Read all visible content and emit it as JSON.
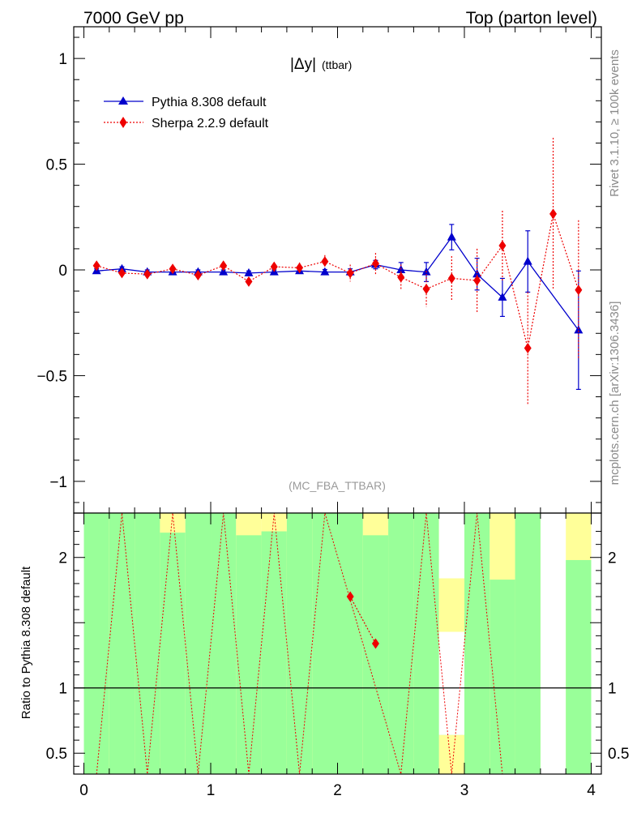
{
  "header": {
    "left": "7000 GeV pp",
    "right": "Top (parton level)"
  },
  "side_labels": {
    "rivet": "Rivet 3.1.10, ≥ 100k events",
    "mcplots": "mcplots.cern.ch [arXiv:1306.3436]"
  },
  "chart_data": [
    {
      "type": "line",
      "panel": "main",
      "title_main": "|Δy|",
      "title_sub": "(ttbar)",
      "watermark": "(MC_FBA_TTBAR)",
      "ylim": [
        -1.15,
        1.15
      ],
      "xlim": [
        -0.08,
        4.08
      ],
      "yticks": [
        -1,
        -0.5,
        0,
        0.5,
        1
      ],
      "ytick_labels": [
        "−1",
        "−0.5",
        "0",
        "0.5",
        "1"
      ],
      "legend_position": "top-left",
      "series": [
        {
          "name": "Pythia 8.308 default",
          "color": "#0000cc",
          "marker": "triangle",
          "line": "solid",
          "x": [
            0.1,
            0.3,
            0.5,
            0.7,
            0.9,
            1.1,
            1.3,
            1.5,
            1.7,
            1.9,
            2.1,
            2.3,
            2.5,
            2.7,
            2.9,
            3.1,
            3.3,
            3.5,
            3.7,
            3.9
          ],
          "y": [
            -0.005,
            0.005,
            -0.01,
            -0.01,
            -0.01,
            -0.01,
            -0.015,
            -0.01,
            -0.005,
            -0.01,
            -0.01,
            0.025,
            0.0,
            -0.01,
            0.155,
            -0.02,
            -0.13,
            0.04,
            null,
            -0.285
          ],
          "err": [
            0.01,
            0.01,
            0.01,
            0.01,
            0.01,
            0.01,
            0.01,
            0.01,
            0.012,
            0.012,
            0.015,
            0.02,
            0.035,
            0.045,
            0.06,
            0.075,
            0.09,
            0.145,
            null,
            0.28
          ]
        },
        {
          "name": "Sherpa 2.2.9 default",
          "color": "#ee0000",
          "marker": "diamond",
          "line": "dotted",
          "x": [
            0.1,
            0.3,
            0.5,
            0.7,
            0.9,
            1.1,
            1.3,
            1.5,
            1.7,
            1.9,
            2.1,
            2.3,
            2.5,
            2.7,
            2.9,
            3.1,
            3.3,
            3.5,
            3.7,
            3.9
          ],
          "y": [
            0.02,
            -0.015,
            -0.02,
            0.005,
            -0.025,
            0.02,
            -0.055,
            0.015,
            0.01,
            0.04,
            -0.015,
            0.03,
            -0.035,
            -0.09,
            -0.04,
            -0.05,
            0.115,
            -0.37,
            0.265,
            -0.095
          ],
          "err": [
            0.012,
            0.01,
            0.012,
            0.012,
            0.012,
            0.015,
            0.018,
            0.02,
            0.025,
            0.03,
            0.04,
            0.05,
            0.06,
            0.085,
            0.105,
            0.15,
            0.165,
            0.265,
            0.36,
            0.33
          ]
        }
      ]
    },
    {
      "type": "line",
      "panel": "ratio",
      "ylabel": "Ratio to Pythia 8.308 default",
      "ylim": [
        0.34,
        2.34
      ],
      "yticks": [
        0.5,
        1,
        1.5,
        2
      ],
      "ytick_labels": [
        "0.5",
        "1",
        "",
        "2"
      ],
      "xticks": [
        0,
        1,
        2,
        3,
        4
      ],
      "xtick_labels": [
        "0",
        "1",
        "2",
        "3",
        "4"
      ],
      "reference_line": 1,
      "bands": {
        "x_edges": [
          0,
          0.2,
          0.4,
          0.6,
          0.8,
          1.0,
          1.2,
          1.4,
          1.6,
          1.8,
          2.0,
          2.2,
          2.4,
          2.6,
          2.8,
          3.0,
          3.2,
          3.4,
          3.6,
          3.8,
          4.0
        ],
        "green_top": [
          2.34,
          2.34,
          2.34,
          2.19,
          2.34,
          2.34,
          2.17,
          2.2,
          2.34,
          2.34,
          2.34,
          2.17,
          2.34,
          2.34,
          1.43,
          2.34,
          1.83,
          2.34,
          null,
          1.98
        ],
        "green_bottom": [
          0.34,
          0.34,
          0.34,
          0.34,
          0.34,
          0.34,
          0.34,
          0.34,
          0.34,
          0.34,
          0.34,
          0.34,
          0.34,
          0.34,
          0.34,
          0.34,
          0.34,
          0.34,
          null,
          0.34
        ],
        "yellow_top": [
          2.34,
          2.34,
          2.34,
          2.34,
          2.34,
          2.34,
          2.34,
          2.34,
          2.34,
          2.34,
          2.34,
          2.34,
          2.34,
          2.34,
          2.34,
          2.34,
          2.34,
          2.34,
          null,
          2.34
        ],
        "yellow_bottom": [
          0.34,
          0.34,
          0.34,
          0.34,
          0.34,
          0.34,
          0.34,
          0.34,
          0.34,
          0.34,
          0.34,
          0.34,
          0.34,
          0.34,
          0.34,
          0.34,
          0.34,
          0.34,
          null,
          0.34
        ],
        "white_gap": [
          [
            2.8,
            3.0,
            1.84,
            2.34
          ],
          [
            2.8,
            3.0,
            0.64,
            1.43
          ]
        ],
        "yellow_patches": [
          [
            2.8,
            3.0,
            1.43,
            1.84
          ],
          [
            2.8,
            3.0,
            0.34,
            0.64
          ]
        ]
      },
      "series": [
        {
          "name": "Sherpa 2.2.9 default",
          "color": "#ee0000",
          "marker": "diamond",
          "line": "dotted",
          "x": [
            2.1,
            2.3
          ],
          "y": [
            1.7,
            1.34
          ],
          "offscale_x": [
            0.3,
            0.5,
            0.7,
            0.9,
            1.1,
            1.3,
            1.5,
            1.7,
            1.9,
            2.5,
            2.7,
            2.9,
            3.1,
            3.3
          ]
        }
      ]
    }
  ]
}
